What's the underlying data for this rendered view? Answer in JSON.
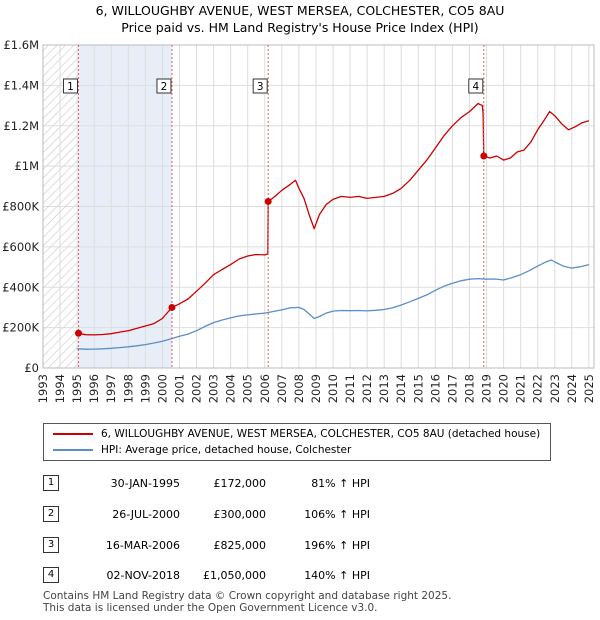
{
  "header": {
    "title": "6, WILLOUGHBY AVENUE, WEST MERSEA, COLCHESTER, CO5 8AU",
    "subtitle": "Price paid vs. HM Land Registry's House Price Index (HPI)"
  },
  "chart_data": {
    "type": "line",
    "title": "6, WILLOUGHBY AVENUE, WEST MERSEA, COLCHESTER, CO5 8AU",
    "subtitle": "Price paid vs. HM Land Registry's House Price Index (HPI)",
    "xlabel": "",
    "ylabel": "",
    "xlim": [
      1993,
      2025.3
    ],
    "ylim": [
      0,
      1600000
    ],
    "grid": true,
    "y_ticks": [
      0,
      200000,
      400000,
      600000,
      800000,
      1000000,
      1200000,
      1400000,
      1600000
    ],
    "y_tick_labels": [
      "£0",
      "£200K",
      "£400K",
      "£600K",
      "£800K",
      "£1M",
      "£1.2M",
      "£1.4M",
      "£1.6M"
    ],
    "x_ticks": [
      1993,
      1994,
      1995,
      1996,
      1997,
      1998,
      1999,
      2000,
      2001,
      2002,
      2003,
      2004,
      2005,
      2006,
      2007,
      2008,
      2009,
      2010,
      2011,
      2012,
      2013,
      2014,
      2015,
      2016,
      2017,
      2018,
      2019,
      2020,
      2021,
      2022,
      2023,
      2024,
      2025
    ],
    "hatched_before": 1995.08,
    "highlight_band": [
      1995.08,
      2000.56
    ],
    "series": [
      {
        "name": "6, WILLOUGHBY AVENUE, WEST MERSEA, COLCHESTER, CO5 8AU (detached house)",
        "color": "#cc0000",
        "points": [
          [
            1995.08,
            172000
          ],
          [
            1995.5,
            165000
          ],
          [
            1996,
            164000
          ],
          [
            1996.5,
            166000
          ],
          [
            1997,
            170000
          ],
          [
            1997.5,
            178000
          ],
          [
            1998,
            185000
          ],
          [
            1998.5,
            196000
          ],
          [
            1999,
            208000
          ],
          [
            1999.5,
            220000
          ],
          [
            2000,
            245000
          ],
          [
            2000.3,
            275000
          ],
          [
            2000.56,
            300000
          ],
          [
            2001,
            318000
          ],
          [
            2001.5,
            342000
          ],
          [
            2002,
            380000
          ],
          [
            2002.5,
            420000
          ],
          [
            2003,
            462000
          ],
          [
            2003.5,
            488000
          ],
          [
            2004,
            512000
          ],
          [
            2004.5,
            540000
          ],
          [
            2005,
            555000
          ],
          [
            2005.5,
            562000
          ],
          [
            2006,
            560000
          ],
          [
            2006.18,
            565000
          ],
          [
            2006.2,
            825000
          ],
          [
            2006.6,
            850000
          ],
          [
            2007,
            880000
          ],
          [
            2007.5,
            910000
          ],
          [
            2007.8,
            930000
          ],
          [
            2008,
            890000
          ],
          [
            2008.3,
            840000
          ],
          [
            2008.6,
            760000
          ],
          [
            2008.9,
            690000
          ],
          [
            2009.2,
            760000
          ],
          [
            2009.6,
            810000
          ],
          [
            2010,
            835000
          ],
          [
            2010.5,
            850000
          ],
          [
            2011,
            845000
          ],
          [
            2011.5,
            850000
          ],
          [
            2012,
            840000
          ],
          [
            2012.5,
            845000
          ],
          [
            2013,
            850000
          ],
          [
            2013.5,
            865000
          ],
          [
            2014,
            890000
          ],
          [
            2014.5,
            930000
          ],
          [
            2015,
            980000
          ],
          [
            2015.5,
            1030000
          ],
          [
            2016,
            1090000
          ],
          [
            2016.5,
            1150000
          ],
          [
            2017,
            1200000
          ],
          [
            2017.5,
            1240000
          ],
          [
            2018,
            1270000
          ],
          [
            2018.5,
            1310000
          ],
          [
            2018.75,
            1300000
          ],
          [
            2018.8,
            1260000
          ],
          [
            2018.84,
            1050000
          ],
          [
            2019.2,
            1040000
          ],
          [
            2019.6,
            1050000
          ],
          [
            2020,
            1030000
          ],
          [
            2020.4,
            1040000
          ],
          [
            2020.8,
            1070000
          ],
          [
            2021.2,
            1080000
          ],
          [
            2021.6,
            1120000
          ],
          [
            2022,
            1180000
          ],
          [
            2022.4,
            1230000
          ],
          [
            2022.7,
            1270000
          ],
          [
            2023,
            1250000
          ],
          [
            2023.4,
            1210000
          ],
          [
            2023.8,
            1180000
          ],
          [
            2024.2,
            1195000
          ],
          [
            2024.6,
            1215000
          ],
          [
            2025,
            1225000
          ]
        ]
      },
      {
        "name": "HPI: Average price, detached house, Colchester",
        "color": "#5b8ec9",
        "points": [
          [
            1995,
            95000
          ],
          [
            1995.5,
            93000
          ],
          [
            1996,
            93500
          ],
          [
            1996.5,
            95000
          ],
          [
            1997,
            97500
          ],
          [
            1997.5,
            101000
          ],
          [
            1998,
            105000
          ],
          [
            1998.5,
            110000
          ],
          [
            1999,
            116000
          ],
          [
            1999.5,
            124000
          ],
          [
            2000,
            133000
          ],
          [
            2000.5,
            144000
          ],
          [
            2001,
            157000
          ],
          [
            2001.5,
            168000
          ],
          [
            2002,
            185000
          ],
          [
            2002.5,
            206000
          ],
          [
            2003,
            225000
          ],
          [
            2003.5,
            238000
          ],
          [
            2004,
            248000
          ],
          [
            2004.5,
            258000
          ],
          [
            2005,
            263000
          ],
          [
            2005.5,
            268000
          ],
          [
            2006,
            272000
          ],
          [
            2006.5,
            280000
          ],
          [
            2007,
            288000
          ],
          [
            2007.5,
            298000
          ],
          [
            2008,
            300000
          ],
          [
            2008.3,
            290000
          ],
          [
            2008.6,
            268000
          ],
          [
            2008.9,
            245000
          ],
          [
            2009.2,
            255000
          ],
          [
            2009.6,
            272000
          ],
          [
            2010,
            282000
          ],
          [
            2010.5,
            285000
          ],
          [
            2011,
            284000
          ],
          [
            2011.5,
            285000
          ],
          [
            2012,
            283000
          ],
          [
            2012.5,
            286000
          ],
          [
            2013,
            290000
          ],
          [
            2013.5,
            298000
          ],
          [
            2014,
            312000
          ],
          [
            2014.5,
            328000
          ],
          [
            2015,
            345000
          ],
          [
            2015.5,
            362000
          ],
          [
            2016,
            385000
          ],
          [
            2016.5,
            405000
          ],
          [
            2017,
            420000
          ],
          [
            2017.5,
            432000
          ],
          [
            2018,
            440000
          ],
          [
            2018.5,
            443000
          ],
          [
            2019,
            440000
          ],
          [
            2019.5,
            441000
          ],
          [
            2020,
            436000
          ],
          [
            2020.5,
            448000
          ],
          [
            2021,
            462000
          ],
          [
            2021.5,
            482000
          ],
          [
            2022,
            505000
          ],
          [
            2022.5,
            526000
          ],
          [
            2022.8,
            535000
          ],
          [
            2023,
            525000
          ],
          [
            2023.5,
            505000
          ],
          [
            2024,
            495000
          ],
          [
            2024.5,
            502000
          ],
          [
            2025,
            512000
          ]
        ]
      }
    ],
    "markers": [
      {
        "id": "1",
        "x": 1995.08,
        "y": 172000
      },
      {
        "id": "2",
        "x": 2000.56,
        "y": 300000
      },
      {
        "id": "3",
        "x": 2006.2,
        "y": 825000
      },
      {
        "id": "4",
        "x": 2018.84,
        "y": 1050000
      }
    ]
  },
  "legend": {
    "items": [
      {
        "label": "6, WILLOUGHBY AVENUE, WEST MERSEA, COLCHESTER, CO5 8AU (detached house)",
        "color": "#cc0000"
      },
      {
        "label": "HPI: Average price, detached house, Colchester",
        "color": "#5b8ec9"
      }
    ]
  },
  "transactions": [
    {
      "num": "1",
      "date": "30-JAN-1995",
      "price": "£172,000",
      "hpi": "81% ↑ HPI"
    },
    {
      "num": "2",
      "date": "26-JUL-2000",
      "price": "£300,000",
      "hpi": "106% ↑ HPI"
    },
    {
      "num": "3",
      "date": "16-MAR-2006",
      "price": "£825,000",
      "hpi": "196% ↑ HPI"
    },
    {
      "num": "4",
      "date": "02-NOV-2018",
      "price": "£1,050,000",
      "hpi": "140% ↑ HPI"
    }
  ],
  "footer": {
    "line1": "Contains HM Land Registry data © Crown copyright and database right 2025.",
    "line2": "This data is licensed under the Open Government Licence v3.0."
  }
}
